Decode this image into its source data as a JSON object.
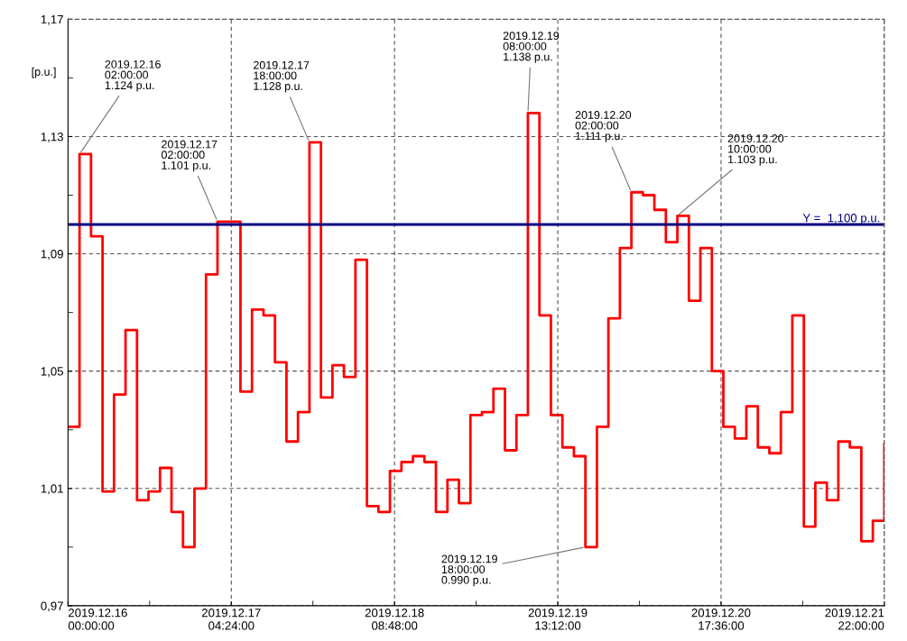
{
  "chart_data": {
    "type": "step",
    "ylabel": "[p.u.]",
    "x": [
      "2019-12-16T00:00",
      "2019-12-16T02:00",
      "2019-12-16T04:00",
      "2019-12-16T06:00",
      "2019-12-16T08:00",
      "2019-12-16T10:00",
      "2019-12-16T12:00",
      "2019-12-16T14:00",
      "2019-12-16T16:00",
      "2019-12-16T18:00",
      "2019-12-16T20:00",
      "2019-12-16T22:00",
      "2019-12-17T00:00",
      "2019-12-17T02:00",
      "2019-12-17T04:00",
      "2019-12-17T06:00",
      "2019-12-17T08:00",
      "2019-12-17T10:00",
      "2019-12-17T12:00",
      "2019-12-17T14:00",
      "2019-12-17T16:00",
      "2019-12-17T18:00",
      "2019-12-17T20:00",
      "2019-12-17T22:00",
      "2019-12-18T00:00",
      "2019-12-18T02:00",
      "2019-12-18T04:00",
      "2019-12-18T06:00",
      "2019-12-18T08:00",
      "2019-12-18T10:00",
      "2019-12-18T12:00",
      "2019-12-18T14:00",
      "2019-12-18T16:00",
      "2019-12-18T18:00",
      "2019-12-18T20:00",
      "2019-12-18T22:00",
      "2019-12-19T00:00",
      "2019-12-19T02:00",
      "2019-12-19T04:00",
      "2019-12-19T06:00",
      "2019-12-19T08:00",
      "2019-12-19T10:00",
      "2019-12-19T12:00",
      "2019-12-19T14:00",
      "2019-12-19T16:00",
      "2019-12-19T18:00",
      "2019-12-19T20:00",
      "2019-12-19T22:00",
      "2019-12-20T00:00",
      "2019-12-20T02:00",
      "2019-12-20T04:00",
      "2019-12-20T06:00",
      "2019-12-20T08:00",
      "2019-12-20T10:00",
      "2019-12-20T12:00",
      "2019-12-20T14:00",
      "2019-12-20T16:00",
      "2019-12-20T18:00",
      "2019-12-20T20:00",
      "2019-12-20T22:00",
      "2019-12-21T00:00",
      "2019-12-21T02:00",
      "2019-12-21T04:00",
      "2019-12-21T06:00",
      "2019-12-21T08:00",
      "2019-12-21T10:00",
      "2019-12-21T12:00",
      "2019-12-21T14:00",
      "2019-12-21T16:00",
      "2019-12-21T18:00",
      "2019-12-21T20:00",
      "2019-12-21T22:00"
    ],
    "series": [
      {
        "color": "#ff0000",
        "values": [
          1.031,
          1.124,
          1.096,
          1.009,
          1.042,
          1.064,
          1.006,
          1.009,
          1.017,
          1.002,
          0.99,
          1.01,
          1.083,
          1.101,
          1.101,
          1.043,
          1.071,
          1.069,
          1.053,
          1.026,
          1.036,
          1.128,
          1.041,
          1.052,
          1.048,
          1.088,
          1.004,
          1.002,
          1.016,
          1.019,
          1.021,
          1.019,
          1.002,
          1.013,
          1.005,
          1.035,
          1.036,
          1.044,
          1.023,
          1.035,
          1.138,
          1.069,
          1.035,
          1.024,
          1.021,
          0.99,
          1.031,
          1.068,
          1.092,
          1.111,
          1.11,
          1.105,
          1.094,
          1.103,
          1.074,
          1.092,
          1.05,
          1.031,
          1.027,
          1.038,
          1.024,
          1.022,
          1.036,
          1.069,
          0.997,
          1.012,
          1.006,
          1.026,
          1.024,
          0.992,
          0.999,
          1.025
        ]
      }
    ],
    "xlim": [
      "2019-12-16T00:00",
      "2019-12-21T22:00"
    ],
    "xticks": [
      {
        "value": "2019-12-16T00:00",
        "label": "2019.12.16\n00:00:00"
      },
      {
        "value": "2019-12-16T14:12",
        "label": null
      },
      {
        "value": "2019-12-17T04:24",
        "label": "2019.12.17\n04:24:00"
      },
      {
        "value": "2019-12-17T18:36",
        "label": null
      },
      {
        "value": "2019-12-18T08:48",
        "label": "2019.12.18\n08:48:00"
      },
      {
        "value": "2019-12-18T23:00",
        "label": null
      },
      {
        "value": "2019-12-19T13:12",
        "label": "2019.12.19\n13:12:00"
      },
      {
        "value": "2019-12-20T03:24",
        "label": null
      },
      {
        "value": "2019-12-20T17:36",
        "label": "2019.12.20\n17:36:00"
      },
      {
        "value": "2019-12-21T07:48",
        "label": null
      },
      {
        "value": "2019-12-21T22:00",
        "label": "2019.12.21\n22:00:00"
      }
    ],
    "ylim": [
      0.97,
      1.17
    ],
    "yticks": [
      {
        "value": 0.97,
        "label": "0,97"
      },
      {
        "value": 0.99,
        "label": null
      },
      {
        "value": 1.01,
        "label": "1,01"
      },
      {
        "value": 1.03,
        "label": null
      },
      {
        "value": 1.05,
        "label": "1,05"
      },
      {
        "value": 1.07,
        "label": null
      },
      {
        "value": 1.09,
        "label": "1,09"
      },
      {
        "value": 1.11,
        "label": null
      },
      {
        "value": 1.13,
        "label": "1,13"
      },
      {
        "value": 1.15,
        "label": null
      },
      {
        "value": 1.17,
        "label": "1,17"
      }
    ],
    "ref_lines": [
      {
        "axis": "y",
        "value": 1.1,
        "label": "Y =  1,100 p.u.",
        "color": "#000080"
      }
    ],
    "annotations": [
      {
        "text": "2019.12.16\n02:00:00\n1.124 p.u.",
        "x": "2019-12-16T02:00",
        "y": 1.124
      },
      {
        "text": "2019.12.17\n02:00:00\n1.101 p.u.",
        "x": "2019-12-17T02:00",
        "y": 1.101
      },
      {
        "text": "2019.12.17\n18:00:00\n1.128 p.u.",
        "x": "2019-12-17T18:00",
        "y": 1.128
      },
      {
        "text": "2019.12.19\n08:00:00\n1.138 p.u.",
        "x": "2019-12-19T08:00",
        "y": 1.138
      },
      {
        "text": "2019.12.19\n18:00:00\n0.990 p.u.",
        "x": "2019-12-19T18:00",
        "y": 0.99
      },
      {
        "text": "2019.12.20\n02:00:00\n1.111 p.u.",
        "x": "2019-12-20T02:00",
        "y": 1.111
      },
      {
        "text": "2019.12.20\n10:00:00\n1.103 p.u.",
        "x": "2019-12-20T10:00",
        "y": 1.103
      }
    ],
    "grid": true,
    "line_style": "solid",
    "marker": "none"
  }
}
